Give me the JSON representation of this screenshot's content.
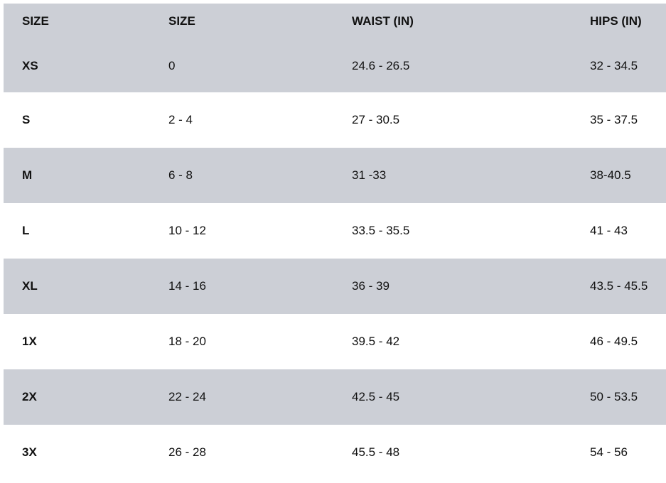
{
  "table": {
    "headers": [
      "SIZE",
      "SIZE",
      "WAIST (IN)",
      "HIPS (IN)"
    ],
    "rows": [
      [
        "XS",
        "0",
        "24.6 - 26.5",
        "32 - 34.5"
      ],
      [
        "S",
        "2 - 4",
        "27 - 30.5",
        "35 - 37.5"
      ],
      [
        "M",
        "6 - 8",
        "31 -33",
        "38-40.5"
      ],
      [
        "L",
        "10 - 12",
        "33.5 - 35.5",
        "41 - 43"
      ],
      [
        "XL",
        "14 - 16",
        "36 - 39",
        "43.5 - 45.5"
      ],
      [
        "1X",
        "18 - 20",
        "39.5 - 42",
        "46 - 49.5"
      ],
      [
        "2X",
        "22 - 24",
        "42.5 - 45",
        "50 - 53.5"
      ],
      [
        "3X",
        "26 - 28",
        "45.5 - 48",
        "54 - 56"
      ]
    ]
  },
  "colors": {
    "stripe": "#cccfd6",
    "background": "#ffffff",
    "text": "#111111"
  }
}
